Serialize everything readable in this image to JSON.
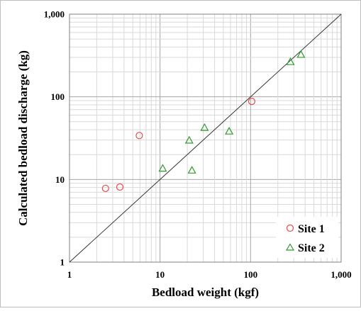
{
  "chart_data": {
    "type": "scatter",
    "title": "",
    "xlabel": "Bedload weight (kgf)",
    "ylabel": "Calculated bedload discharge (kg)",
    "xscale": "log",
    "yscale": "log",
    "xlim": [
      1,
      1000
    ],
    "ylim": [
      1,
      1000
    ],
    "x_ticks": [
      "1",
      "10",
      "100",
      "1,000"
    ],
    "y_ticks": [
      "1",
      "10",
      "100",
      "1,000"
    ],
    "grid": "major and minor",
    "legend_position": "bottom-right",
    "reference_line": "1:1",
    "series": [
      {
        "name": "Site 1",
        "marker": "circle",
        "color": "#e84a4a",
        "points": [
          {
            "x": 2.5,
            "y": 7.8
          },
          {
            "x": 3.6,
            "y": 8.1
          },
          {
            "x": 5.9,
            "y": 34
          },
          {
            "x": 103,
            "y": 88
          }
        ]
      },
      {
        "name": "Site 2",
        "marker": "triangle",
        "color": "#2e9a2e",
        "points": [
          {
            "x": 10.7,
            "y": 13.5
          },
          {
            "x": 21,
            "y": 29.5
          },
          {
            "x": 22.5,
            "y": 12.8
          },
          {
            "x": 31,
            "y": 42
          },
          {
            "x": 58,
            "y": 38
          },
          {
            "x": 275,
            "y": 263
          },
          {
            "x": 360,
            "y": 322
          }
        ]
      }
    ]
  }
}
